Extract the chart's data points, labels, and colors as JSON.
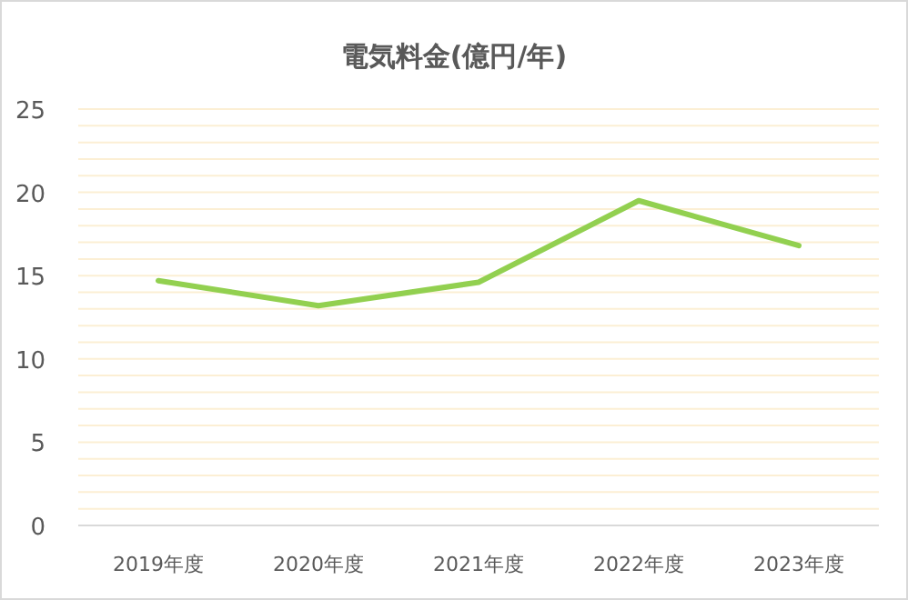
{
  "chart_data": {
    "type": "line",
    "title": "電気料金(億円/年)",
    "categories": [
      "2019年度",
      "2020年度",
      "2021年度",
      "2022年度",
      "2023年度"
    ],
    "series": [
      {
        "color": "#92d050",
        "values": [
          14.7,
          13.2,
          14.6,
          19.5,
          16.8
        ]
      }
    ],
    "ylim": [
      0,
      25
    ],
    "yticks": [
      0,
      {
        "value": 1,
        "label": null
      },
      {
        "value": 2,
        "label": null
      },
      {
        "value": 3,
        "label": null
      },
      {
        "value": 4,
        "label": null
      },
      5,
      {
        "value": 6,
        "label": null
      },
      {
        "value": 7,
        "label": null
      },
      {
        "value": 8,
        "label": null
      },
      {
        "value": 9,
        "label": null
      },
      10,
      {
        "value": 11,
        "label": null
      },
      {
        "value": 12,
        "label": null
      },
      {
        "value": 13,
        "label": null
      },
      {
        "value": 14,
        "label": null
      },
      15,
      {
        "value": 16,
        "label": null
      },
      {
        "value": 17,
        "label": null
      },
      {
        "value": 18,
        "label": null
      },
      {
        "value": 19,
        "label": null
      },
      20,
      {
        "value": 21,
        "label": null
      },
      {
        "value": 22,
        "label": null
      },
      {
        "value": 23,
        "label": null
      },
      {
        "value": 24,
        "label": null
      },
      25
    ],
    "grid": "y",
    "marker": "none",
    "line_style": "solid"
  }
}
